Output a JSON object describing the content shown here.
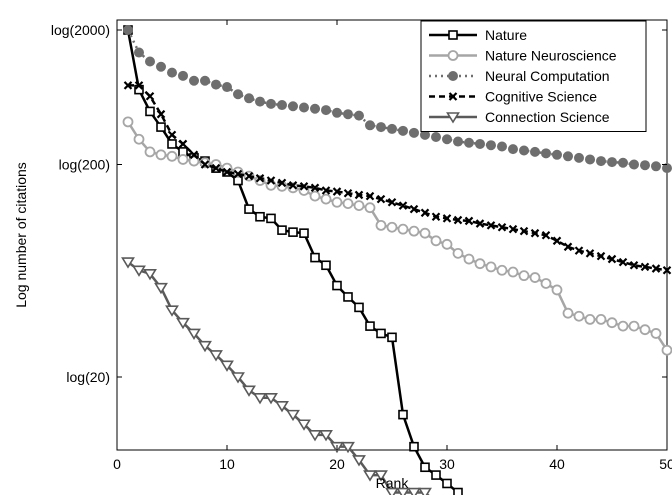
{
  "chart_data": {
    "type": "line",
    "title": "",
    "xlabel": "Rank",
    "ylabel": "Log number of citations",
    "xlim": [
      0,
      50
    ],
    "ylim": [
      1.0,
      2.34
    ],
    "y_scale": "log",
    "x_ticks": [
      0,
      10,
      20,
      30,
      40,
      50
    ],
    "y_ticks": [
      {
        "value": 1.30103,
        "label": "log(20)"
      },
      {
        "value": 2.30103,
        "label": "log(200)"
      },
      {
        "value": 3.30103,
        "label": "log(2000)"
      }
    ],
    "grid": false,
    "legend": "top-right",
    "series": [
      {
        "name": "Nature",
        "color": "#000000",
        "style": "solid",
        "marker": "square",
        "x": [
          1,
          2,
          3,
          4,
          5,
          6,
          7,
          8,
          9,
          10,
          11,
          12,
          13,
          14,
          15,
          16,
          17,
          18,
          19,
          20,
          21,
          22,
          23,
          24,
          25,
          26,
          27,
          28,
          29,
          30,
          31,
          32
        ],
        "y": [
          2000,
          650,
          450,
          350,
          270,
          240,
          220,
          210,
          190,
          180,
          160,
          110,
          100,
          98,
          85,
          83,
          82,
          62,
          57,
          46,
          41,
          37,
          31,
          29,
          28,
          15,
          12,
          10.5,
          10,
          9.5,
          9,
          8.5
        ]
      },
      {
        "name": "Nature Neuroscience",
        "color": "#a6a6a6",
        "style": "solid",
        "marker": "circle",
        "x": [
          1,
          2,
          3,
          4,
          5,
          6,
          7,
          8,
          9,
          10,
          11,
          12,
          13,
          14,
          15,
          16,
          17,
          18,
          19,
          20,
          21,
          22,
          23,
          24,
          25,
          26,
          27,
          28,
          29,
          30,
          31,
          32,
          33,
          34,
          35,
          36,
          37,
          38,
          39,
          40,
          41,
          42,
          43,
          44,
          45,
          46,
          47,
          48,
          49,
          50
        ],
        "y": [
          380,
          290,
          240,
          230,
          225,
          215,
          210,
          205,
          200,
          190,
          180,
          170,
          160,
          150,
          148,
          145,
          140,
          130,
          125,
          120,
          118,
          115,
          112,
          90,
          88,
          86,
          84,
          82,
          75,
          72,
          65,
          61,
          58,
          56,
          54,
          53,
          51,
          50,
          47,
          44,
          35,
          34,
          33,
          33,
          32,
          31,
          31,
          30,
          29,
          25
        ]
      },
      {
        "name": "Neural Computation",
        "color": "#6e6e6e",
        "style": "dotted",
        "marker": "dot",
        "x": [
          1,
          2,
          3,
          4,
          5,
          6,
          7,
          8,
          9,
          10,
          11,
          12,
          13,
          14,
          15,
          16,
          17,
          18,
          19,
          20,
          21,
          22,
          23,
          24,
          25,
          26,
          27,
          28,
          29,
          30,
          31,
          32,
          33,
          34,
          35,
          36,
          37,
          38,
          39,
          40,
          41,
          42,
          43,
          44,
          45,
          46,
          47,
          48,
          49,
          50
        ],
        "y": [
          2000,
          1280,
          1080,
          980,
          880,
          830,
          760,
          760,
          710,
          680,
          600,
          560,
          530,
          510,
          500,
          490,
          480,
          470,
          460,
          440,
          430,
          420,
          360,
          350,
          340,
          330,
          320,
          310,
          300,
          290,
          280,
          275,
          270,
          265,
          260,
          250,
          245,
          240,
          235,
          230,
          225,
          220,
          215,
          210,
          207,
          205,
          200,
          198,
          195,
          190
        ]
      },
      {
        "name": "Cognitive Science",
        "color": "#000000",
        "style": "dashed",
        "marker": "x",
        "x": [
          1,
          2,
          3,
          4,
          5,
          6,
          7,
          8,
          9,
          10,
          11,
          12,
          13,
          14,
          15,
          16,
          17,
          18,
          19,
          20,
          21,
          22,
          23,
          24,
          25,
          26,
          27,
          28,
          29,
          30,
          31,
          32,
          33,
          34,
          35,
          36,
          37,
          38,
          39,
          40,
          41,
          42,
          43,
          44,
          45,
          46,
          47,
          48,
          49,
          50
        ],
        "y": [
          700,
          700,
          580,
          430,
          310,
          270,
          230,
          200,
          190,
          180,
          175,
          170,
          165,
          160,
          155,
          150,
          148,
          145,
          140,
          138,
          135,
          132,
          130,
          125,
          120,
          115,
          110,
          105,
          100,
          98,
          96,
          95,
          92,
          90,
          88,
          86,
          84,
          82,
          80,
          75,
          70,
          67,
          65,
          63,
          61,
          59,
          57,
          56,
          55,
          54
        ]
      },
      {
        "name": "Connection Science",
        "color": "#5a5a5a",
        "style": "solid",
        "marker": "triangle-down",
        "x": [
          1,
          2,
          3,
          4,
          5,
          6,
          7,
          8,
          9,
          10,
          11,
          12,
          13,
          14,
          15,
          16,
          17,
          18,
          19,
          20,
          21,
          22,
          23,
          24,
          25,
          26,
          27,
          28,
          29,
          30,
          31,
          32,
          33,
          34,
          35
        ],
        "y": [
          59,
          54,
          52,
          45,
          36,
          32,
          29,
          26,
          24,
          22,
          20,
          18,
          17,
          17,
          16,
          15,
          14,
          13,
          13,
          12,
          12,
          11,
          10,
          10,
          9,
          9,
          9,
          9,
          8.5,
          8.5,
          8.5,
          8,
          8,
          8,
          8
        ]
      }
    ]
  }
}
